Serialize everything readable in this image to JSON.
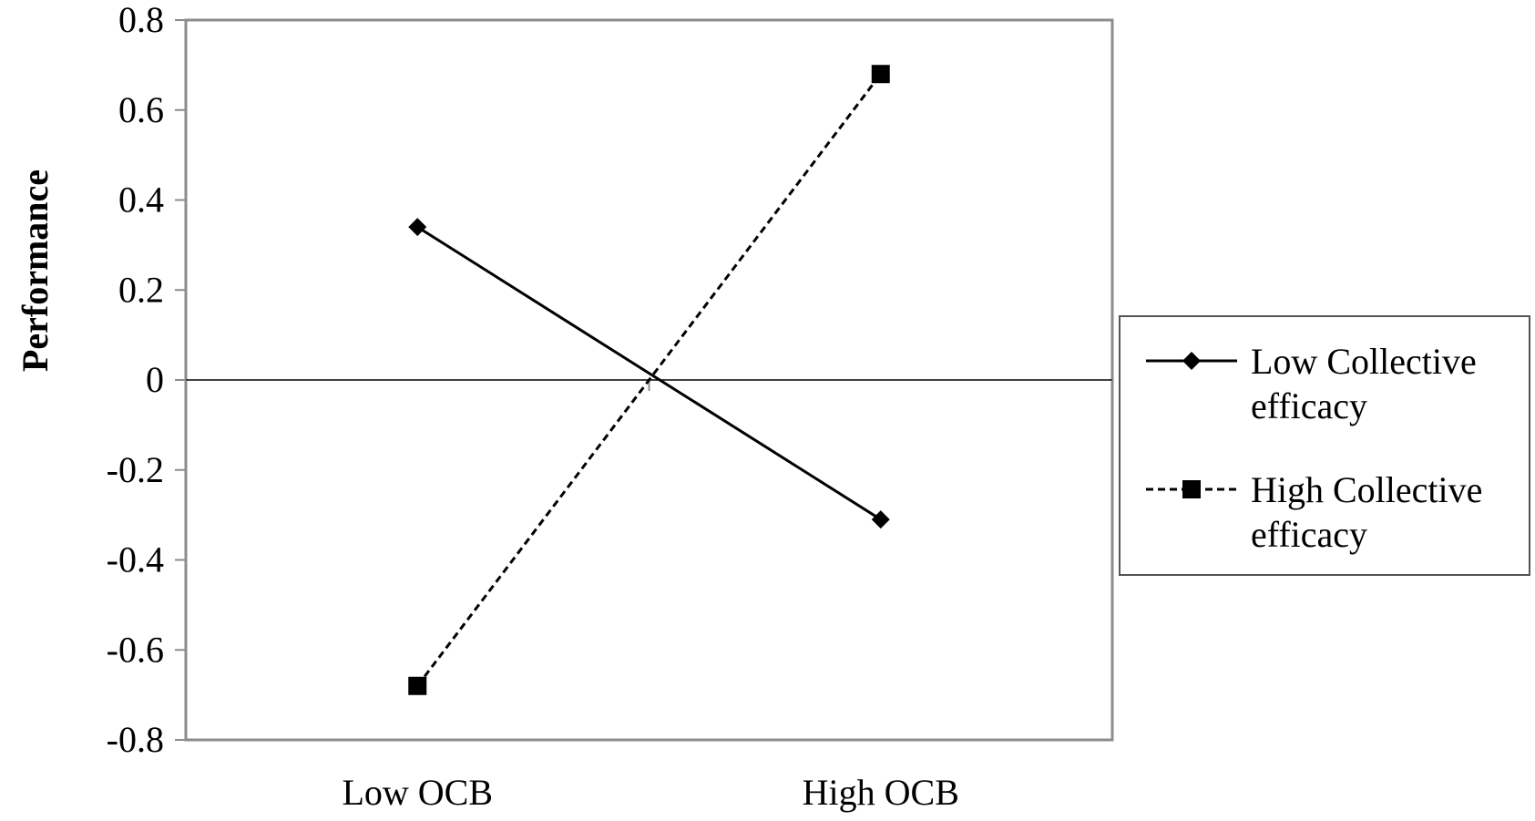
{
  "chart_data": {
    "type": "line",
    "title": "",
    "xlabel": "",
    "ylabel": "Performance",
    "categories": [
      "Low OCB",
      "High OCB"
    ],
    "ylim": [
      -0.8,
      0.8
    ],
    "yticks": [
      "0.8",
      "0.6",
      "0.4",
      "0.2",
      "0",
      "-0.2",
      "-0.4",
      "-0.6",
      "-0.8"
    ],
    "grid": false,
    "legend_position": "right",
    "series": [
      {
        "name_lines": [
          "Low Collective",
          "efficacy"
        ],
        "values": [
          0.34,
          -0.31
        ],
        "marker": "diamond",
        "line_style": "solid",
        "color": "#000000"
      },
      {
        "name_lines": [
          "High Collective",
          "efficacy"
        ],
        "values": [
          -0.68,
          0.68
        ],
        "marker": "square",
        "line_style": "dashed",
        "color": "#000000"
      }
    ]
  }
}
